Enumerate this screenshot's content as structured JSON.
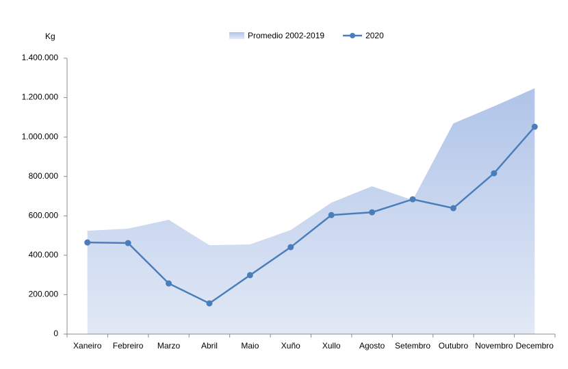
{
  "chart_data": {
    "type": "line",
    "y_axis_label": "Kg",
    "categories": [
      "Xaneiro",
      "Febreiro",
      "Marzo",
      "Abril",
      "Maio",
      "Xuño",
      "Xullo",
      "Agosto",
      "Setembro",
      "Outubro",
      "Novembro",
      "Decembro"
    ],
    "series": [
      {
        "name": "Promedio 2002-2019",
        "type": "area",
        "color": "#b4c7e7",
        "values": [
          524000,
          535000,
          580000,
          451000,
          455000,
          528000,
          667000,
          750000,
          680000,
          1069000,
          1156000,
          1247000
        ]
      },
      {
        "name": "2020",
        "type": "line",
        "color": "#4a7ebb",
        "values": [
          465000,
          462000,
          257000,
          156000,
          299000,
          441000,
          604000,
          618000,
          684000,
          639000,
          816000,
          1052000
        ]
      }
    ],
    "ylim": [
      0,
      1400000
    ],
    "yticks": [
      0,
      {
        "value": 200000,
        "label": "200.000"
      },
      {
        "value": 400000,
        "label": "400.000"
      },
      {
        "value": 600000,
        "label": "600.000"
      },
      {
        "value": 800000,
        "label": "800.000"
      },
      {
        "value": 1000000,
        "label": "1.000.000"
      },
      {
        "value": 1200000,
        "label": "1.200.000"
      },
      {
        "value": 1400000,
        "label": "1.400.000"
      }
    ],
    "legend": "top"
  }
}
